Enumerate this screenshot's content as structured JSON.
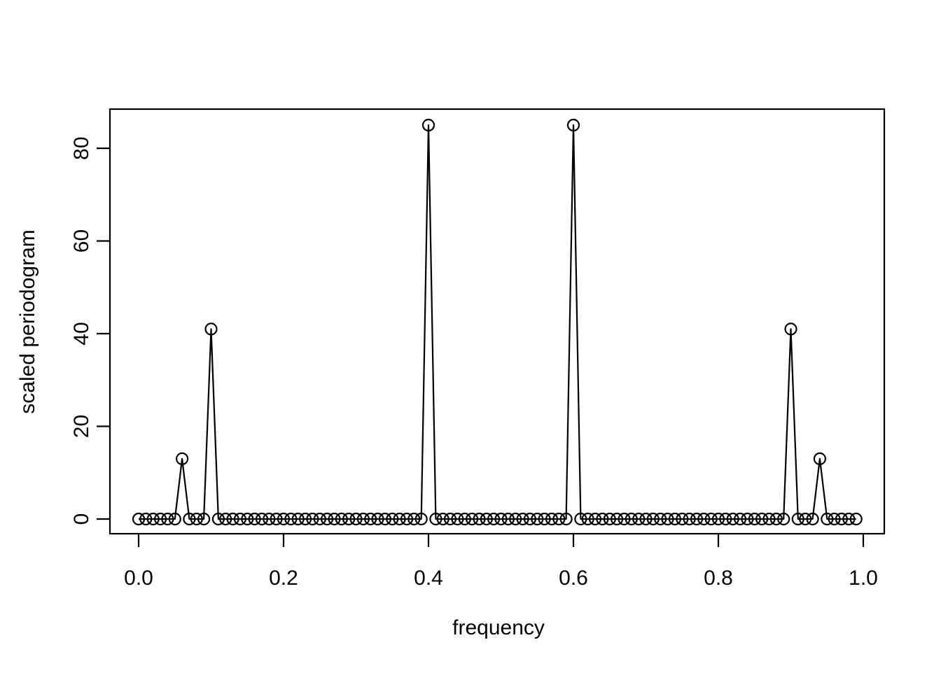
{
  "chart_data": {
    "type": "line",
    "title": "",
    "xlabel": "frequency",
    "ylabel": "scaled periodogram",
    "marker": "open-circle",
    "line_style": "solid",
    "grid": false,
    "legend": null,
    "colors": {
      "foreground": "#000000",
      "background": "#ffffff"
    },
    "xlim": [
      0.0,
      1.0
    ],
    "ylim": [
      0,
      85
    ],
    "x_ticks": [
      0.0,
      0.2,
      0.4,
      0.6,
      0.8,
      1.0
    ],
    "x_tick_labels": [
      "0.0",
      "0.2",
      "0.4",
      "0.6",
      "0.8",
      "1.0"
    ],
    "y_ticks": [
      0,
      20,
      40,
      60,
      80
    ],
    "y_tick_labels": [
      "0",
      "20",
      "40",
      "60",
      "80"
    ],
    "x_start": 0.0,
    "x_step": 0.01,
    "n_points": 100,
    "values": [
      0,
      0,
      0,
      0,
      0,
      0,
      13,
      0,
      0,
      0,
      41,
      0,
      0,
      0,
      0,
      0,
      0,
      0,
      0,
      0,
      0,
      0,
      0,
      0,
      0,
      0,
      0,
      0,
      0,
      0,
      0,
      0,
      0,
      0,
      0,
      0,
      0,
      0,
      0,
      0,
      85,
      0,
      0,
      0,
      0,
      0,
      0,
      0,
      0,
      0,
      0,
      0,
      0,
      0,
      0,
      0,
      0,
      0,
      0,
      0,
      85,
      0,
      0,
      0,
      0,
      0,
      0,
      0,
      0,
      0,
      0,
      0,
      0,
      0,
      0,
      0,
      0,
      0,
      0,
      0,
      0,
      0,
      0,
      0,
      0,
      0,
      0,
      0,
      0,
      0,
      41,
      0,
      0,
      0,
      13,
      0,
      0,
      0,
      0,
      0
    ],
    "peaks": [
      {
        "frequency": 0.06,
        "value": 13
      },
      {
        "frequency": 0.1,
        "value": 41
      },
      {
        "frequency": 0.4,
        "value": 85
      },
      {
        "frequency": 0.6,
        "value": 85
      },
      {
        "frequency": 0.9,
        "value": 41
      },
      {
        "frequency": 0.94,
        "value": 13
      }
    ]
  }
}
